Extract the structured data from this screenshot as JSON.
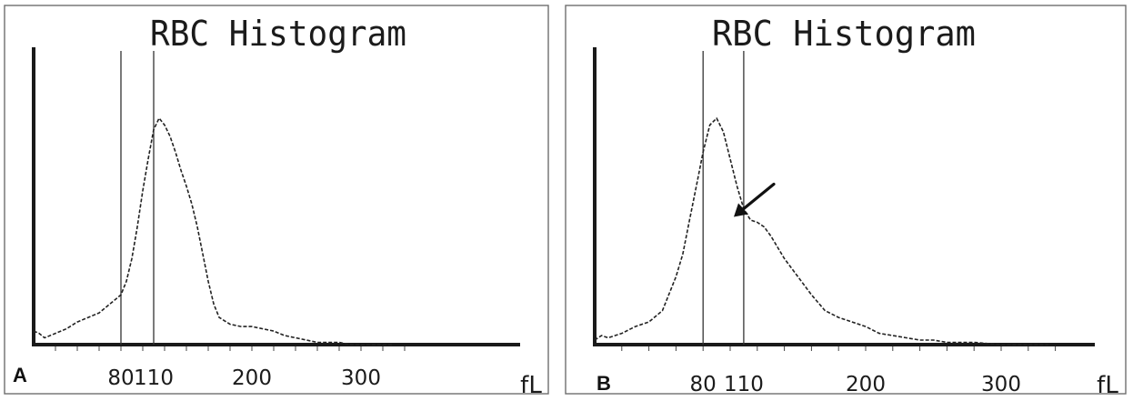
{
  "chart_data": [
    {
      "type": "line",
      "panel_label": "A",
      "title": "RBC Histogram",
      "unit": "fL",
      "xlim": [
        0,
        360
      ],
      "ylim": [
        0,
        100
      ],
      "xticks": [
        80,
        110,
        200,
        300
      ],
      "xtick_labels": [
        "80",
        "110",
        "200",
        "300"
      ],
      "reference_lines": [
        80,
        110
      ],
      "grid": false,
      "series": [
        {
          "x": [
            0,
            5,
            10,
            20,
            30,
            40,
            50,
            60,
            70,
            80,
            85,
            90,
            95,
            100,
            105,
            110,
            115,
            120,
            125,
            130,
            135,
            140,
            145,
            150,
            155,
            160,
            165,
            170,
            180,
            190,
            200,
            210,
            220,
            230,
            240,
            250,
            260,
            270,
            280,
            290,
            300,
            310,
            320,
            330
          ],
          "y": [
            6,
            5,
            3,
            5,
            7,
            10,
            12,
            14,
            18,
            22,
            28,
            38,
            52,
            68,
            82,
            95,
            100,
            97,
            92,
            85,
            77,
            70,
            62,
            52,
            40,
            28,
            18,
            12,
            9,
            8,
            8,
            7,
            6,
            4,
            3,
            2,
            1,
            1,
            1,
            0,
            0,
            0,
            0,
            0
          ],
          "style": "dashed"
        }
      ]
    },
    {
      "type": "line",
      "panel_label": "B",
      "title": "RBC Histogram",
      "unit": "fL",
      "xlim": [
        0,
        360
      ],
      "ylim": [
        0,
        100
      ],
      "xticks": [
        80,
        110,
        200,
        300
      ],
      "xtick_labels": [
        "80",
        "110",
        "200",
        "300"
      ],
      "reference_lines": [
        80,
        110
      ],
      "grid": false,
      "annotation": {
        "type": "arrow",
        "target_x": 100,
        "target_y": 54
      },
      "series": [
        {
          "x": [
            0,
            5,
            10,
            20,
            30,
            40,
            50,
            60,
            65,
            70,
            75,
            80,
            85,
            90,
            95,
            100,
            105,
            110,
            115,
            120,
            125,
            130,
            140,
            150,
            160,
            170,
            180,
            190,
            200,
            210,
            220,
            230,
            240,
            250,
            260,
            280,
            300,
            320,
            335
          ],
          "y": [
            2,
            4,
            3,
            5,
            8,
            10,
            15,
            30,
            40,
            55,
            70,
            85,
            97,
            100,
            94,
            82,
            70,
            60,
            55,
            54,
            52,
            48,
            38,
            30,
            22,
            15,
            12,
            10,
            8,
            5,
            4,
            3,
            2,
            2,
            1,
            1,
            0,
            0,
            0
          ],
          "style": "dashed"
        }
      ]
    }
  ]
}
